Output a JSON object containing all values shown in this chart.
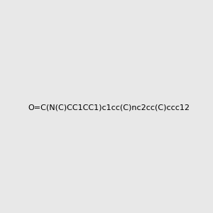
{
  "smiles": "O=C(N(C)CC1CC1)c1cc(C)nc2cc(C)ccc12",
  "image_size": 300,
  "background_color": "#e8e8e8",
  "bond_color": "#000000",
  "atom_colors": {
    "N": "#0000ff",
    "O": "#ff0000"
  }
}
